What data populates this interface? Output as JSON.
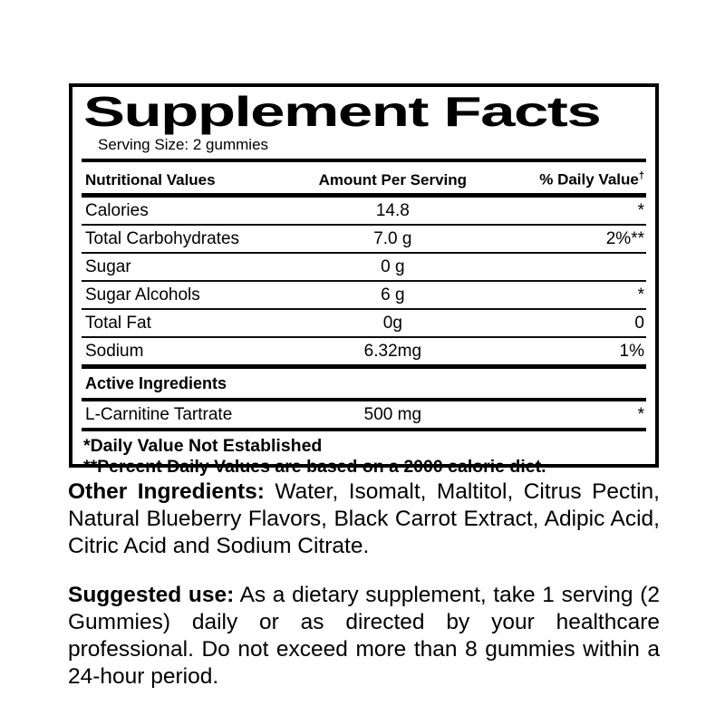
{
  "label": {
    "title": "Supplement Facts",
    "serving_size": "Serving Size: 2 gummies",
    "columns": {
      "nutrient": "Nutritional Values",
      "amount": "Amount Per Serving",
      "daily_value": "% Daily Value",
      "daily_value_symbol": "†"
    },
    "rows": [
      {
        "name": "Calories",
        "amount": "14.8",
        "dv": "*"
      },
      {
        "name": "Total Carbohydrates",
        "amount": "7.0 g",
        "dv": "2%**"
      },
      {
        "name": "Sugar",
        "amount": "0 g",
        "dv": ""
      },
      {
        "name": "Sugar Alcohols",
        "amount": "6 g",
        "dv": "*"
      },
      {
        "name": "Total Fat",
        "amount": "0g",
        "dv": "0"
      },
      {
        "name": "Sodium",
        "amount": "6.32mg",
        "dv": "1%"
      }
    ],
    "section_header": "Active Ingredients",
    "active_rows": [
      {
        "name": "L-Carnitine Tartrate",
        "amount": "500 mg",
        "dv": "*"
      }
    ],
    "footnotes": [
      "*Daily Value Not Established",
      "**Percent Daily Values are based on a 2000 calorie diet."
    ]
  },
  "other_ingredients": {
    "lead": "Other Ingredients:",
    "text": "Water, Isomalt, Maltitol, Citrus Pectin, Natural Blueberry Flavors, Black Carrot Extract, Adipic Acid, Citric Acid and Sodium Citrate."
  },
  "suggested_use": {
    "lead": "Suggested use:",
    "text": "As a dietary supplement, take 1 serving (2 Gummies) daily or as directed by your healthcare professional. Do not exceed more than 8 gummies within a 24-hour period."
  },
  "colors": {
    "text": "#000000",
    "background": "#ffffff",
    "border": "#000000"
  }
}
